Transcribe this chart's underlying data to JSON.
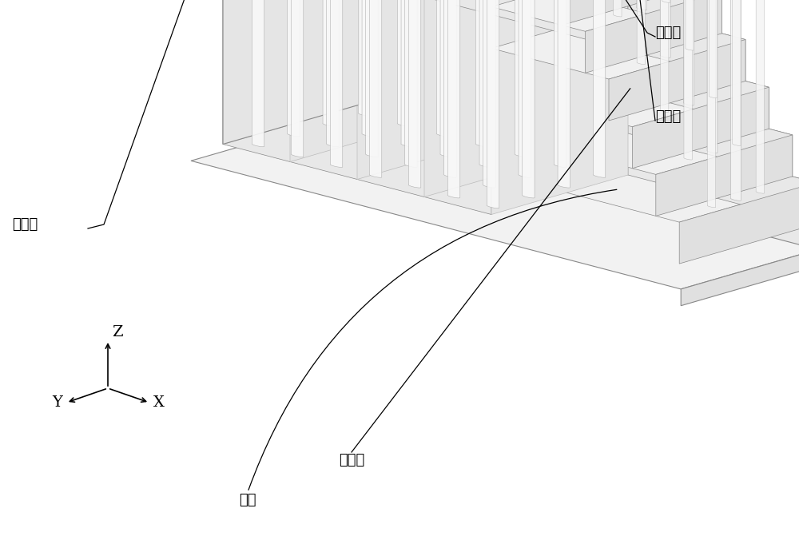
{
  "bg_color": "#ffffff",
  "line_color": "#aaaaaa",
  "dark_line_color": "#444444",
  "label_color": "#000000",
  "labels": {
    "array_region": "阵列区",
    "channel_hole": "沟道孔",
    "contact_hole": "接触孔",
    "staircase": "台阶区",
    "substrate": "衬底"
  },
  "axis_labels": {
    "x": "X",
    "y": "Y",
    "z": "Z"
  },
  "figsize": [
    10.0,
    6.81
  ],
  "dpi": 100
}
